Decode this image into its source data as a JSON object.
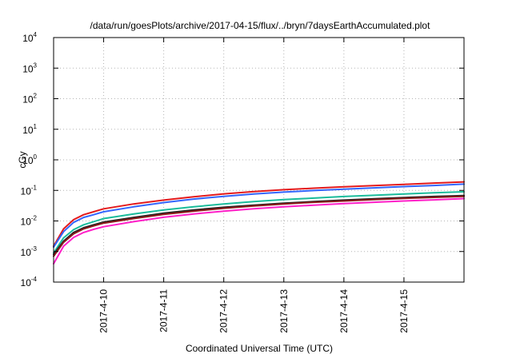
{
  "chart_data": {
    "type": "line",
    "title": "/data/run/goesPlots/archive/2017-04-15/flux/../bryn/7daysEarthAccumulated.plot",
    "xlabel": "Coordinated Universal Time (UTC)",
    "ylabel": "cGy",
    "y_scale": "log",
    "ylim": [
      0.0001,
      10000
    ],
    "y_ticks": [
      {
        "base": "10",
        "exp": "-4",
        "value": 0.0001
      },
      {
        "base": "10",
        "exp": "-3",
        "value": 0.001
      },
      {
        "base": "10",
        "exp": "-2",
        "value": 0.01
      },
      {
        "base": "10",
        "exp": "-1",
        "value": 0.1
      },
      {
        "base": "10",
        "exp": "0",
        "value": 1
      },
      {
        "base": "10",
        "exp": "1",
        "value": 10
      },
      {
        "base": "10",
        "exp": "2",
        "value": 100
      },
      {
        "base": "10",
        "exp": "3",
        "value": 1000
      },
      {
        "base": "10",
        "exp": "4",
        "value": 10000
      }
    ],
    "xlim": [
      "2017-04-09 04:00",
      "2017-04-16 00:00"
    ],
    "x_ticks": [
      "2017-4-10",
      "2017-4-11",
      "2017-4-12",
      "2017-4-13",
      "2017-4-14",
      "2017-4-15"
    ],
    "grid": true,
    "legend": "none",
    "x": [
      "2017-04-09 04:00",
      "2017-04-09 08:00",
      "2017-04-09 12:00",
      "2017-04-09 16:00",
      "2017-04-09 20:00",
      "2017-04-10 00:00",
      "2017-04-10 12:00",
      "2017-04-11 00:00",
      "2017-04-11 12:00",
      "2017-04-12 00:00",
      "2017-04-12 12:00",
      "2017-04-13 00:00",
      "2017-04-13 12:00",
      "2017-04-14 00:00",
      "2017-04-14 12:00",
      "2017-04-15 00:00",
      "2017-04-15 12:00",
      "2017-04-16 00:00"
    ],
    "series": [
      {
        "color": "#e41a1c",
        "values": [
          0.0015,
          0.0055,
          0.011,
          0.016,
          0.02,
          0.025,
          0.036,
          0.048,
          0.062,
          0.077,
          0.091,
          0.105,
          0.118,
          0.131,
          0.143,
          0.158,
          0.173,
          0.19
        ]
      },
      {
        "color": "#3366ff",
        "values": [
          0.0014,
          0.0045,
          0.009,
          0.013,
          0.016,
          0.02,
          0.029,
          0.04,
          0.052,
          0.064,
          0.076,
          0.088,
          0.099,
          0.11,
          0.121,
          0.133,
          0.145,
          0.16
        ]
      },
      {
        "color": "#1abc9c",
        "values": [
          0.0009,
          0.0028,
          0.0052,
          0.0075,
          0.0095,
          0.012,
          0.017,
          0.023,
          0.029,
          0.036,
          0.043,
          0.05,
          0.056,
          0.063,
          0.069,
          0.076,
          0.083,
          0.09
        ]
      },
      {
        "color": "#222222",
        "values": [
          0.0008,
          0.0022,
          0.0042,
          0.006,
          0.0075,
          0.0092,
          0.013,
          0.018,
          0.023,
          0.028,
          0.033,
          0.038,
          0.043,
          0.048,
          0.053,
          0.058,
          0.063,
          0.068
        ]
      },
      {
        "color": "#8b1a1a",
        "values": [
          0.0007,
          0.002,
          0.0038,
          0.0055,
          0.0069,
          0.0085,
          0.012,
          0.0165,
          0.021,
          0.026,
          0.031,
          0.036,
          0.041,
          0.045,
          0.05,
          0.055,
          0.059,
          0.064
        ]
      },
      {
        "color": "#ff1fc8",
        "values": [
          0.0004,
          0.0015,
          0.0029,
          0.0042,
          0.0053,
          0.0065,
          0.0095,
          0.0132,
          0.017,
          0.021,
          0.025,
          0.029,
          0.033,
          0.037,
          0.041,
          0.045,
          0.049,
          0.054
        ]
      }
    ]
  }
}
